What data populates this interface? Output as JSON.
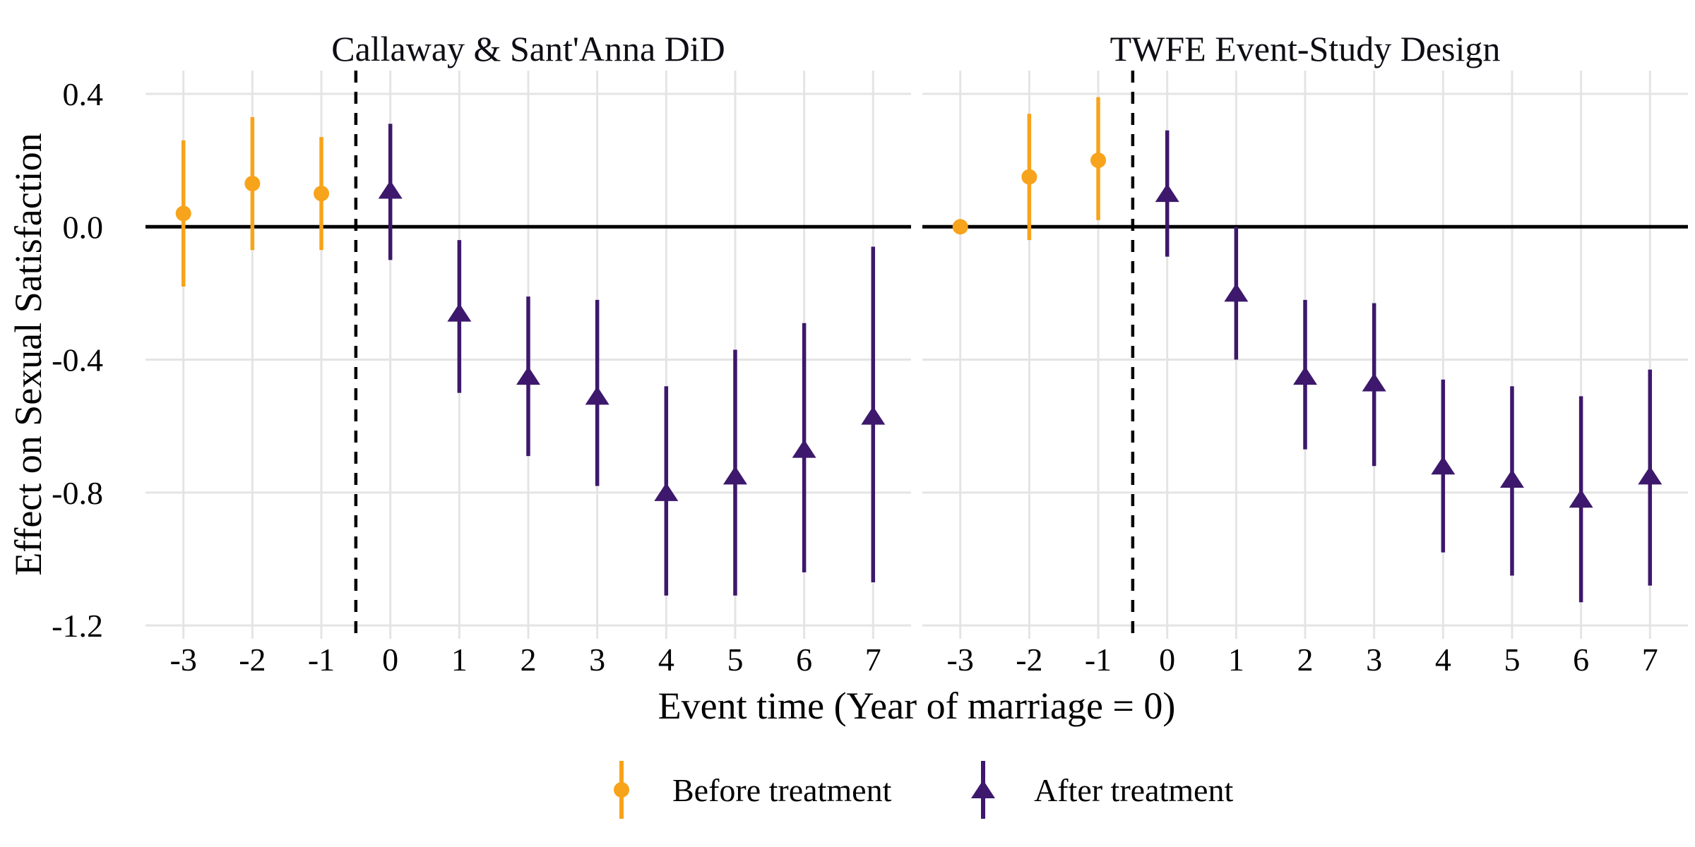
{
  "figure": {
    "y_axis_title": "Effect on Sexual Satisfaction",
    "x_axis_title": "Event time (Year of marriage = 0)",
    "legend": {
      "before": {
        "label": "Before treatment",
        "color": "#F7A31B",
        "marker": "circle"
      },
      "after": {
        "label": "After treatment",
        "color": "#3D186C",
        "marker": "triangle"
      }
    }
  },
  "chart_data": [
    {
      "type": "scatter",
      "title": "Callaway & Sant'Anna DiD",
      "xlabel": "Event time (Year of marriage = 0)",
      "ylabel": "Effect on Sexual Satisfaction",
      "x_ticks": [
        -3,
        -2,
        -1,
        0,
        1,
        2,
        3,
        4,
        5,
        6,
        7
      ],
      "y_ticks": [
        0.4,
        0.0,
        -0.4,
        -0.8,
        -1.2
      ],
      "xlim": [
        -3.55,
        7.55
      ],
      "ylim": [
        -1.24,
        0.47
      ],
      "grid": "major",
      "hline_y": 0,
      "vline_dashed_x": -0.5,
      "series": [
        {
          "name": "Before treatment",
          "marker": "circle",
          "color": "#F7A31B",
          "points": [
            {
              "x": -3,
              "est": 0.04,
              "lo": -0.18,
              "hi": 0.26
            },
            {
              "x": -2,
              "est": 0.13,
              "lo": -0.07,
              "hi": 0.33
            },
            {
              "x": -1,
              "est": 0.1,
              "lo": -0.07,
              "hi": 0.27
            }
          ]
        },
        {
          "name": "After treatment",
          "marker": "triangle",
          "color": "#3D186C",
          "points": [
            {
              "x": 0,
              "est": 0.11,
              "lo": -0.1,
              "hi": 0.31
            },
            {
              "x": 1,
              "est": -0.26,
              "lo": -0.5,
              "hi": -0.04
            },
            {
              "x": 2,
              "est": -0.45,
              "lo": -0.69,
              "hi": -0.21
            },
            {
              "x": 3,
              "est": -0.51,
              "lo": -0.78,
              "hi": -0.22
            },
            {
              "x": 4,
              "est": -0.8,
              "lo": -1.11,
              "hi": -0.48
            },
            {
              "x": 5,
              "est": -0.75,
              "lo": -1.11,
              "hi": -0.37
            },
            {
              "x": 6,
              "est": -0.67,
              "lo": -1.04,
              "hi": -0.29
            },
            {
              "x": 7,
              "est": -0.57,
              "lo": -1.07,
              "hi": -0.06
            }
          ]
        }
      ]
    },
    {
      "type": "scatter",
      "title": "TWFE Event-Study Design",
      "xlabel": "Event time (Year of marriage = 0)",
      "ylabel": "Effect on Sexual Satisfaction",
      "x_ticks": [
        -3,
        -2,
        -1,
        0,
        1,
        2,
        3,
        4,
        5,
        6,
        7
      ],
      "y_ticks": [
        0.4,
        0.0,
        -0.4,
        -0.8,
        -1.2
      ],
      "xlim": [
        -3.55,
        7.55
      ],
      "ylim": [
        -1.24,
        0.47
      ],
      "grid": "major",
      "hline_y": 0,
      "vline_dashed_x": -0.5,
      "series": [
        {
          "name": "Before treatment",
          "marker": "circle",
          "color": "#F7A31B",
          "points": [
            {
              "x": -3,
              "est": 0.0,
              "lo": 0.0,
              "hi": 0.0
            },
            {
              "x": -2,
              "est": 0.15,
              "lo": -0.04,
              "hi": 0.34
            },
            {
              "x": -1,
              "est": 0.2,
              "lo": 0.02,
              "hi": 0.39
            }
          ]
        },
        {
          "name": "After treatment",
          "marker": "triangle",
          "color": "#3D186C",
          "points": [
            {
              "x": 0,
              "est": 0.1,
              "lo": -0.09,
              "hi": 0.29
            },
            {
              "x": 1,
              "est": -0.2,
              "lo": -0.4,
              "hi": 0.0
            },
            {
              "x": 2,
              "est": -0.45,
              "lo": -0.67,
              "hi": -0.22
            },
            {
              "x": 3,
              "est": -0.47,
              "lo": -0.72,
              "hi": -0.23
            },
            {
              "x": 4,
              "est": -0.72,
              "lo": -0.98,
              "hi": -0.46
            },
            {
              "x": 5,
              "est": -0.76,
              "lo": -1.05,
              "hi": -0.48
            },
            {
              "x": 6,
              "est": -0.82,
              "lo": -1.13,
              "hi": -0.51
            },
            {
              "x": 7,
              "est": -0.75,
              "lo": -1.08,
              "hi": -0.43
            }
          ]
        }
      ]
    }
  ]
}
